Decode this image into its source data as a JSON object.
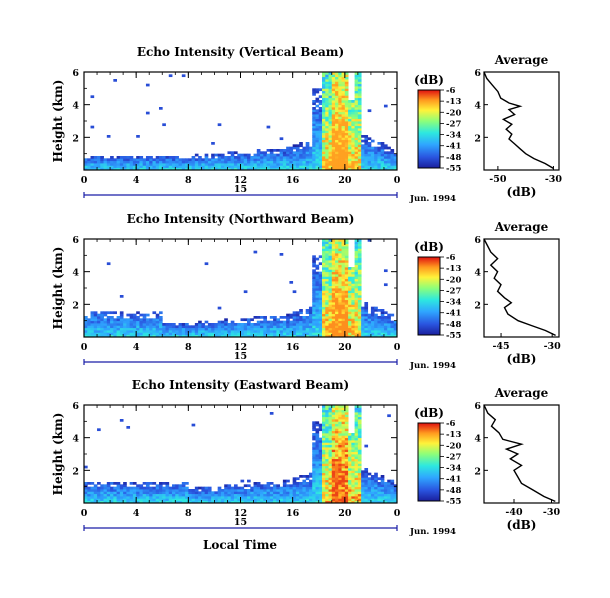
{
  "figure": {
    "x_label": "Local Time",
    "date_label": "Jun. 1994",
    "date_day": "15"
  },
  "chart_data": [
    {
      "type": "heatmap",
      "title": "Echo Intensity (Vertical Beam)",
      "xlabel": "Local Time",
      "ylabel": "Height (km)",
      "x_ticks": [
        "0",
        "4",
        "8",
        "12",
        "16",
        "20",
        "0"
      ],
      "xlim": [
        0,
        24
      ],
      "y_ticks": [
        "2",
        "4",
        "6"
      ],
      "ylim": [
        0,
        6
      ],
      "colorbar": {
        "title": "(dB)",
        "levels": [
          "-6",
          "-13",
          "-20",
          "-27",
          "-34",
          "-41",
          "-48",
          "-55"
        ]
      },
      "profile": {
        "title": "Average",
        "xlabel": "(dB)",
        "x_ticks": [
          "-50",
          "-30"
        ],
        "xlim": [
          -55,
          -28
        ],
        "y_ticks": [
          "2",
          "4",
          "6"
        ],
        "points": [
          [
            -30,
            0.1
          ],
          [
            -33,
            0.4
          ],
          [
            -37,
            0.7
          ],
          [
            -40,
            1.0
          ],
          [
            -42,
            1.3
          ],
          [
            -44,
            1.6
          ],
          [
            -46,
            1.9
          ],
          [
            -45,
            2.2
          ],
          [
            -47,
            2.5
          ],
          [
            -45,
            2.8
          ],
          [
            -48,
            3.1
          ],
          [
            -44,
            3.4
          ],
          [
            -46,
            3.7
          ],
          [
            -42,
            3.9
          ],
          [
            -46,
            4.1
          ],
          [
            -49,
            4.4
          ],
          [
            -50,
            4.8
          ],
          [
            -52,
            5.2
          ],
          [
            -54,
            5.6
          ],
          [
            -55,
            6.0
          ]
        ]
      }
    },
    {
      "type": "heatmap",
      "title": "Echo Intensity (Northward Beam)",
      "xlabel": "Local Time",
      "ylabel": "Height (km)",
      "x_ticks": [
        "0",
        "4",
        "8",
        "12",
        "16",
        "20",
        "0"
      ],
      "xlim": [
        0,
        24
      ],
      "y_ticks": [
        "2",
        "4",
        "6"
      ],
      "ylim": [
        0,
        6
      ],
      "colorbar": {
        "title": "(dB)",
        "levels": [
          "-6",
          "-13",
          "-20",
          "-27",
          "-34",
          "-41",
          "-48",
          "-55"
        ]
      },
      "profile": {
        "title": "Average",
        "xlabel": "(dB)",
        "x_ticks": [
          "-45",
          "-30"
        ],
        "xlim": [
          -50,
          -28
        ],
        "y_ticks": [
          "2",
          "4",
          "6"
        ],
        "points": [
          [
            -29,
            0.1
          ],
          [
            -32,
            0.4
          ],
          [
            -36,
            0.7
          ],
          [
            -40,
            1.0
          ],
          [
            -43,
            1.4
          ],
          [
            -44,
            1.8
          ],
          [
            -42,
            2.1
          ],
          [
            -44,
            2.4
          ],
          [
            -46,
            2.8
          ],
          [
            -45,
            3.2
          ],
          [
            -47,
            3.6
          ],
          [
            -46,
            4.0
          ],
          [
            -48,
            4.4
          ],
          [
            -46,
            4.8
          ],
          [
            -48,
            5.2
          ],
          [
            -49,
            5.6
          ],
          [
            -50,
            6.0
          ]
        ]
      }
    },
    {
      "type": "heatmap",
      "title": "Echo Intensity (Eastward Beam)",
      "xlabel": "Local Time",
      "ylabel": "Height (km)",
      "x_ticks": [
        "0",
        "4",
        "8",
        "12",
        "16",
        "20",
        "0"
      ],
      "xlim": [
        0,
        24
      ],
      "y_ticks": [
        "2",
        "4",
        "6"
      ],
      "ylim": [
        0,
        6
      ],
      "colorbar": {
        "title": "(dB)",
        "levels": [
          "-6",
          "-13",
          "-20",
          "-27",
          "-34",
          "-41",
          "-48",
          "-55"
        ]
      },
      "profile": {
        "title": "Average",
        "xlabel": "(dB)",
        "x_ticks": [
          "-40",
          "-30"
        ],
        "xlim": [
          -48,
          -28
        ],
        "y_ticks": [
          "2",
          "4",
          "6"
        ],
        "points": [
          [
            -29,
            0.1
          ],
          [
            -32,
            0.4
          ],
          [
            -35,
            0.8
          ],
          [
            -38,
            1.2
          ],
          [
            -39,
            1.6
          ],
          [
            -40,
            2.0
          ],
          [
            -38,
            2.3
          ],
          [
            -41,
            2.7
          ],
          [
            -39,
            3.0
          ],
          [
            -42,
            3.3
          ],
          [
            -38,
            3.6
          ],
          [
            -43,
            3.9
          ],
          [
            -44,
            4.3
          ],
          [
            -46,
            4.7
          ],
          [
            -45,
            5.1
          ],
          [
            -47,
            5.5
          ],
          [
            -48,
            6.0
          ]
        ]
      }
    }
  ]
}
